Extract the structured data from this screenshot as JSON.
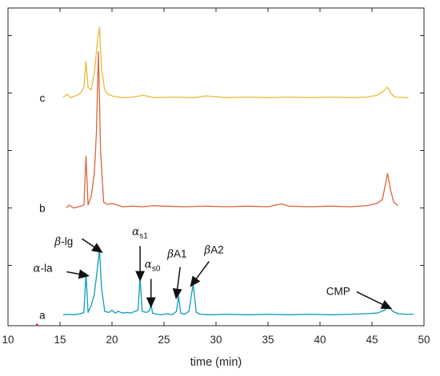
{
  "chart_data": {
    "type": "line",
    "title": "",
    "xlabel": "time (min)",
    "ylabel": "",
    "xlim": [
      10,
      50
    ],
    "x_ticks": [
      "10",
      "15",
      "20",
      "25",
      "30",
      "35",
      "40",
      "45",
      "50"
    ],
    "y_ticks_labeled": false,
    "grid": false,
    "legend": "none",
    "series": [
      {
        "name": "a",
        "color": "#0e9bbd",
        "points": [
          [
            15.3,
            0.14
          ],
          [
            15.8,
            0.15
          ],
          [
            16.4,
            0.14
          ],
          [
            17.0,
            0.16
          ],
          [
            17.3,
            0.18
          ],
          [
            17.5,
            0.86
          ],
          [
            17.7,
            0.18
          ],
          [
            18.0,
            0.3
          ],
          [
            18.3,
            0.5
          ],
          [
            18.5,
            0.8
          ],
          [
            18.8,
            1.27
          ],
          [
            19.0,
            0.6
          ],
          [
            19.3,
            0.2
          ],
          [
            19.7,
            0.18
          ],
          [
            20.0,
            0.22
          ],
          [
            20.3,
            0.17
          ],
          [
            20.6,
            0.2
          ],
          [
            21.0,
            0.17
          ],
          [
            21.4,
            0.18
          ],
          [
            21.8,
            0.17
          ],
          [
            22.2,
            0.2
          ],
          [
            22.5,
            0.22
          ],
          [
            22.7,
            0.78
          ],
          [
            22.9,
            0.2
          ],
          [
            23.3,
            0.18
          ],
          [
            23.6,
            0.21
          ],
          [
            23.75,
            0.32
          ],
          [
            23.9,
            0.17
          ],
          [
            24.3,
            0.15
          ],
          [
            24.8,
            0.14
          ],
          [
            25.3,
            0.16
          ],
          [
            25.8,
            0.14
          ],
          [
            26.2,
            0.2
          ],
          [
            26.4,
            0.47
          ],
          [
            26.6,
            0.17
          ],
          [
            27.0,
            0.15
          ],
          [
            27.4,
            0.2
          ],
          [
            27.8,
            0.68
          ],
          [
            28.1,
            0.18
          ],
          [
            28.5,
            0.15
          ],
          [
            29.5,
            0.14
          ],
          [
            31.0,
            0.15
          ],
          [
            33.0,
            0.14
          ],
          [
            35.0,
            0.15
          ],
          [
            37.0,
            0.14
          ],
          [
            39.0,
            0.15
          ],
          [
            41.0,
            0.14
          ],
          [
            43.0,
            0.15
          ],
          [
            44.5,
            0.16
          ],
          [
            45.5,
            0.17
          ],
          [
            46.2,
            0.22
          ],
          [
            46.6,
            0.29
          ],
          [
            47.0,
            0.2
          ],
          [
            47.5,
            0.16
          ],
          [
            48.2,
            0.15
          ],
          [
            49.0,
            0.15
          ]
        ]
      },
      {
        "name": "b",
        "color": "#d9663a",
        "points": [
          [
            15.6,
            2.0
          ],
          [
            15.9,
            2.05
          ],
          [
            16.3,
            2.0
          ],
          [
            17.0,
            2.03
          ],
          [
            17.3,
            2.05
          ],
          [
            17.5,
            2.9
          ],
          [
            17.7,
            2.05
          ],
          [
            18.0,
            2.2
          ],
          [
            18.3,
            2.6
          ],
          [
            18.5,
            3.3
          ],
          [
            18.7,
            4.72
          ],
          [
            18.9,
            3.0
          ],
          [
            19.2,
            2.1
          ],
          [
            19.6,
            2.06
          ],
          [
            20.0,
            2.08
          ],
          [
            21.0,
            2.02
          ],
          [
            22.0,
            2.03
          ],
          [
            23.0,
            2.02
          ],
          [
            24.0,
            2.04
          ],
          [
            25.0,
            2.03
          ],
          [
            27.0,
            2.02
          ],
          [
            29.0,
            2.03
          ],
          [
            31.0,
            2.02
          ],
          [
            33.0,
            2.03
          ],
          [
            35.0,
            2.02
          ],
          [
            36.3,
            2.07
          ],
          [
            37.0,
            2.03
          ],
          [
            39.0,
            2.02
          ],
          [
            41.0,
            2.03
          ],
          [
            43.0,
            2.02
          ],
          [
            44.5,
            2.04
          ],
          [
            45.5,
            2.08
          ],
          [
            46.0,
            2.15
          ],
          [
            46.5,
            2.6
          ],
          [
            46.8,
            2.3
          ],
          [
            47.1,
            2.1
          ],
          [
            47.5,
            2.04
          ]
        ]
      },
      {
        "name": "c",
        "color": "#e8b93a",
        "points": [
          [
            15.3,
            3.92
          ],
          [
            15.7,
            3.98
          ],
          [
            16.0,
            3.92
          ],
          [
            16.5,
            3.95
          ],
          [
            17.0,
            4.0
          ],
          [
            17.3,
            4.1
          ],
          [
            17.5,
            4.55
          ],
          [
            17.7,
            4.1
          ],
          [
            18.0,
            4.05
          ],
          [
            18.3,
            4.35
          ],
          [
            18.6,
            4.9
          ],
          [
            18.8,
            5.15
          ],
          [
            19.0,
            4.4
          ],
          [
            19.3,
            4.05
          ],
          [
            19.6,
            3.98
          ],
          [
            20.0,
            3.95
          ],
          [
            21.0,
            3.92
          ],
          [
            22.0,
            3.93
          ],
          [
            23.0,
            3.96
          ],
          [
            24.0,
            3.92
          ],
          [
            26.0,
            3.93
          ],
          [
            28.0,
            3.92
          ],
          [
            29.0,
            3.95
          ],
          [
            31.0,
            3.92
          ],
          [
            33.0,
            3.93
          ],
          [
            35.0,
            3.92
          ],
          [
            37.0,
            3.93
          ],
          [
            39.0,
            3.92
          ],
          [
            41.0,
            3.93
          ],
          [
            43.0,
            3.92
          ],
          [
            44.5,
            3.93
          ],
          [
            45.5,
            3.96
          ],
          [
            46.0,
            4.02
          ],
          [
            46.5,
            4.1
          ],
          [
            46.8,
            4.0
          ],
          [
            47.2,
            3.93
          ],
          [
            48.5,
            3.92
          ]
        ]
      }
    ],
    "trace_labels": [
      "a",
      "b",
      "c"
    ],
    "annotations": [
      {
        "id": "alpha-la",
        "greek": "α",
        "text": "-la",
        "sub": "",
        "points_to": [
          17.5,
          0.86
        ]
      },
      {
        "id": "beta-lg",
        "greek": "β",
        "text": "-lg",
        "sub": "",
        "points_to": [
          18.8,
          1.27
        ]
      },
      {
        "id": "alpha-s1",
        "greek": "α",
        "text": "",
        "sub": "s1",
        "points_to": [
          22.7,
          0.78
        ]
      },
      {
        "id": "alpha-s0",
        "greek": "α",
        "text": "",
        "sub": "s0",
        "points_to": [
          23.75,
          0.32
        ]
      },
      {
        "id": "beta-a1",
        "greek": "β",
        "text": "A1",
        "sub": "",
        "points_to": [
          26.4,
          0.47
        ]
      },
      {
        "id": "beta-a2",
        "greek": "β",
        "text": "A2",
        "sub": "",
        "points_to": [
          27.8,
          0.68
        ]
      },
      {
        "id": "cmp",
        "greek": "",
        "text": "CMP",
        "sub": "",
        "points_to": [
          46.6,
          0.29
        ]
      }
    ]
  }
}
